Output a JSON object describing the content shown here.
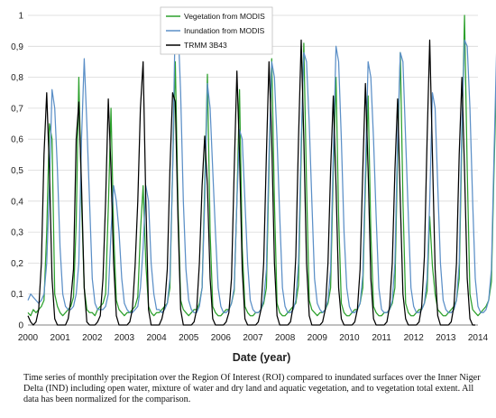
{
  "chart_data": {
    "type": "line",
    "title": "",
    "xlabel": "Date (year)",
    "ylabel": "",
    "xlim": [
      2000,
      2014
    ],
    "ylim": [
      0,
      1
    ],
    "x_ticks": [
      "2000",
      "2001",
      "2002",
      "2003",
      "2004",
      "2005",
      "2006",
      "2007",
      "2008",
      "2009",
      "2010",
      "2011",
      "2012",
      "2013",
      "2014"
    ],
    "y_ticks": [
      "0",
      "0,1",
      "0,2",
      "0,3",
      "0,4",
      "0,5",
      "0,6",
      "0,7",
      "0,8",
      "0,9",
      "1"
    ],
    "grid": "horizontal",
    "legend_position": "top-center",
    "series": [
      {
        "name": "Vegetation from MODIS",
        "color": "#2ca02c",
        "x_start": 2000.0,
        "step": 0.0833333,
        "values": [
          0.04,
          0.03,
          0.05,
          0.04,
          0.05,
          0.06,
          0.08,
          0.3,
          0.65,
          0.6,
          0.1,
          0.06,
          0.04,
          0.03,
          0.04,
          0.05,
          0.06,
          0.09,
          0.33,
          0.8,
          0.4,
          0.12,
          0.05,
          0.04,
          0.04,
          0.03,
          0.05,
          0.06,
          0.07,
          0.1,
          0.38,
          0.7,
          0.3,
          0.08,
          0.05,
          0.04,
          0.03,
          0.04,
          0.04,
          0.05,
          0.06,
          0.09,
          0.3,
          0.45,
          0.2,
          0.06,
          0.04,
          0.03,
          0.04,
          0.04,
          0.05,
          0.06,
          0.07,
          0.12,
          0.5,
          0.85,
          0.4,
          0.08,
          0.05,
          0.04,
          0.03,
          0.04,
          0.05,
          0.05,
          0.07,
          0.12,
          0.45,
          0.81,
          0.3,
          0.06,
          0.04,
          0.03,
          0.03,
          0.04,
          0.05,
          0.05,
          0.07,
          0.11,
          0.4,
          0.76,
          0.25,
          0.06,
          0.04,
          0.03,
          0.03,
          0.04,
          0.04,
          0.05,
          0.07,
          0.12,
          0.5,
          0.86,
          0.4,
          0.07,
          0.04,
          0.03,
          0.03,
          0.04,
          0.05,
          0.06,
          0.07,
          0.13,
          0.55,
          0.91,
          0.45,
          0.08,
          0.05,
          0.04,
          0.03,
          0.04,
          0.04,
          0.05,
          0.07,
          0.12,
          0.5,
          0.8,
          0.35,
          0.07,
          0.04,
          0.03,
          0.03,
          0.04,
          0.05,
          0.05,
          0.07,
          0.12,
          0.45,
          0.74,
          0.3,
          0.06,
          0.04,
          0.03,
          0.03,
          0.04,
          0.04,
          0.05,
          0.07,
          0.12,
          0.55,
          0.88,
          0.4,
          0.07,
          0.04,
          0.03,
          0.03,
          0.04,
          0.05,
          0.05,
          0.07,
          0.11,
          0.35,
          0.19,
          0.1,
          0.05,
          0.04,
          0.03,
          0.03,
          0.04,
          0.05,
          0.06,
          0.08,
          0.15,
          0.6,
          1.0,
          0.5,
          0.1,
          0.05,
          0.04,
          0.03,
          0.04,
          0.05,
          0.06,
          0.08,
          0.14,
          0.5,
          0.83,
          0.3,
          0.06,
          0.04
        ]
      },
      {
        "name": "Inundation from MODIS",
        "color": "#5b8fc7",
        "x_start": 2000.0,
        "step": 0.0833333,
        "values": [
          0.08,
          0.1,
          0.09,
          0.08,
          0.07,
          0.08,
          0.1,
          0.2,
          0.45,
          0.76,
          0.7,
          0.5,
          0.25,
          0.1,
          0.06,
          0.05,
          0.05,
          0.06,
          0.1,
          0.2,
          0.6,
          0.86,
          0.65,
          0.4,
          0.15,
          0.07,
          0.05,
          0.05,
          0.05,
          0.06,
          0.1,
          0.3,
          0.45,
          0.4,
          0.3,
          0.15,
          0.07,
          0.05,
          0.04,
          0.04,
          0.05,
          0.06,
          0.12,
          0.25,
          0.45,
          0.4,
          0.2,
          0.1,
          0.05,
          0.05,
          0.04,
          0.05,
          0.07,
          0.15,
          0.5,
          1.0,
          0.98,
          0.75,
          0.4,
          0.18,
          0.08,
          0.05,
          0.04,
          0.04,
          0.06,
          0.12,
          0.4,
          0.78,
          0.7,
          0.5,
          0.3,
          0.12,
          0.06,
          0.04,
          0.04,
          0.05,
          0.07,
          0.12,
          0.4,
          0.63,
          0.6,
          0.4,
          0.2,
          0.08,
          0.05,
          0.04,
          0.04,
          0.05,
          0.08,
          0.18,
          0.55,
          0.85,
          0.8,
          0.6,
          0.35,
          0.12,
          0.06,
          0.04,
          0.04,
          0.05,
          0.08,
          0.2,
          0.6,
          0.88,
          0.85,
          0.65,
          0.4,
          0.15,
          0.07,
          0.05,
          0.04,
          0.05,
          0.08,
          0.18,
          0.55,
          0.9,
          0.85,
          0.6,
          0.3,
          0.12,
          0.06,
          0.04,
          0.04,
          0.05,
          0.07,
          0.16,
          0.5,
          0.85,
          0.8,
          0.6,
          0.35,
          0.12,
          0.05,
          0.04,
          0.04,
          0.05,
          0.08,
          0.2,
          0.6,
          0.88,
          0.85,
          0.6,
          0.35,
          0.12,
          0.06,
          0.04,
          0.04,
          0.05,
          0.07,
          0.15,
          0.4,
          0.75,
          0.7,
          0.45,
          0.2,
          0.08,
          0.05,
          0.04,
          0.04,
          0.05,
          0.08,
          0.2,
          0.65,
          0.92,
          0.9,
          0.7,
          0.4,
          0.15,
          0.06,
          0.04,
          0.04,
          0.05,
          0.08,
          0.18,
          0.55,
          0.9,
          0.85,
          0.7,
          0.4,
          0.12
        ]
      },
      {
        "name": "TRMM 3B43",
        "color": "#000000",
        "x_start": 2000.0,
        "step": 0.0833333,
        "values": [
          0.03,
          0.01,
          0.0,
          0.01,
          0.05,
          0.2,
          0.55,
          0.75,
          0.5,
          0.15,
          0.02,
          0.0,
          0.0,
          0.0,
          0.0,
          0.02,
          0.08,
          0.18,
          0.6,
          0.72,
          0.45,
          0.12,
          0.01,
          0.0,
          0.0,
          0.0,
          0.01,
          0.03,
          0.15,
          0.4,
          0.73,
          0.5,
          0.2,
          0.03,
          0.0,
          0.0,
          0.0,
          0.0,
          0.01,
          0.05,
          0.19,
          0.4,
          0.7,
          0.85,
          0.4,
          0.05,
          0.0,
          0.0,
          0.0,
          0.0,
          0.02,
          0.06,
          0.18,
          0.5,
          0.75,
          0.72,
          0.35,
          0.05,
          0.0,
          0.0,
          0.0,
          0.0,
          0.01,
          0.05,
          0.2,
          0.45,
          0.61,
          0.45,
          0.15,
          0.02,
          0.0,
          0.0,
          0.0,
          0.0,
          0.01,
          0.04,
          0.15,
          0.5,
          0.82,
          0.55,
          0.18,
          0.02,
          0.0,
          0.0,
          0.0,
          0.0,
          0.01,
          0.05,
          0.2,
          0.55,
          0.85,
          0.6,
          0.2,
          0.03,
          0.0,
          0.0,
          0.0,
          0.0,
          0.01,
          0.06,
          0.22,
          0.6,
          0.92,
          0.6,
          0.2,
          0.03,
          0.0,
          0.0,
          0.0,
          0.0,
          0.01,
          0.05,
          0.2,
          0.5,
          0.74,
          0.45,
          0.12,
          0.02,
          0.0,
          0.0,
          0.0,
          0.0,
          0.01,
          0.05,
          0.18,
          0.5,
          0.78,
          0.5,
          0.15,
          0.02,
          0.0,
          0.0,
          0.0,
          0.0,
          0.01,
          0.06,
          0.2,
          0.5,
          0.73,
          0.4,
          0.1,
          0.02,
          0.0,
          0.0,
          0.0,
          0.0,
          0.01,
          0.06,
          0.22,
          0.6,
          0.92,
          0.55,
          0.18,
          0.03,
          0.0,
          0.0,
          0.0,
          0.0,
          0.01,
          0.06,
          0.2,
          0.55,
          0.8,
          0.5,
          0.15,
          0.02,
          0.0,
          0.0
        ]
      }
    ]
  },
  "caption": "Time series of monthly precipitation over the Region Of Interest (ROI) compared to inundated surfaces over the Inner Niger Delta (IND) including open water, mixture of water and dry land and aquatic vegetation, and to vegetation total extent. All data has been normalized for the comparison."
}
